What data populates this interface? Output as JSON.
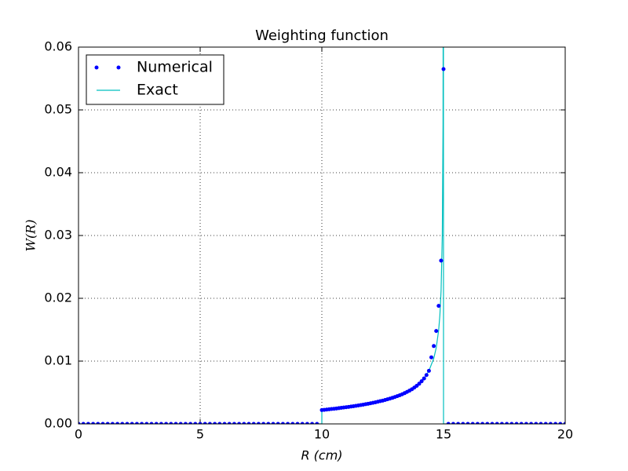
{
  "chart_data": {
    "type": "line",
    "title": "Weighting function",
    "x_label": "R (cm)",
    "y_label": "W(R)",
    "xlim": [
      0,
      20
    ],
    "xticks": [
      0,
      5,
      10,
      15,
      20
    ],
    "ylim": [
      0,
      0.06
    ],
    "yticks": [
      {
        "value": 0,
        "label": "0.00"
      },
      {
        "value": 0.01,
        "label": "0.01"
      },
      {
        "value": 0.02,
        "label": "0.02"
      },
      {
        "value": 0.03,
        "label": "0.03"
      },
      {
        "value": 0.04,
        "label": "0.04"
      },
      {
        "value": 0.05,
        "label": "0.05"
      },
      {
        "value": 0.06,
        "label": "0.06"
      }
    ],
    "grid": true,
    "legend": "upper left",
    "series": [
      {
        "name": "Numerical",
        "color": "#0000ff",
        "marker": "dot",
        "x": [
          0,
          0.2,
          0.4,
          0.6,
          0.8,
          1,
          1.2,
          1.4,
          1.6,
          1.8,
          2,
          2.2,
          2.4,
          2.6,
          2.8,
          3,
          3.2,
          3.4,
          3.6,
          3.8,
          4,
          4.2,
          4.4,
          4.6,
          4.8,
          5,
          5.2,
          5.4,
          5.6,
          5.8,
          6,
          6.2,
          6.4,
          6.6,
          6.8,
          7,
          7.2,
          7.4,
          7.6,
          7.8,
          8,
          8.2,
          8.4,
          8.6,
          8.8,
          9,
          9.2,
          9.4,
          9.6,
          9.8,
          10,
          10.1,
          10.2,
          10.3,
          10.4,
          10.5,
          10.6,
          10.7,
          10.8,
          10.9,
          11,
          11.1,
          11.2,
          11.3,
          11.4,
          11.5,
          11.6,
          11.7,
          11.8,
          11.9,
          12,
          12.1,
          12.2,
          12.3,
          12.4,
          12.5,
          12.6,
          12.7,
          12.8,
          12.9,
          13,
          13.1,
          13.2,
          13.3,
          13.4,
          13.5,
          13.6,
          13.7,
          13.8,
          13.9,
          14,
          14.1,
          14.2,
          14.3,
          14.4,
          14.5,
          14.6,
          14.7,
          14.8,
          14.9,
          15,
          15.2,
          15.4,
          15.6,
          15.8,
          16,
          16.2,
          16.4,
          16.6,
          16.8,
          17,
          17.2,
          17.4,
          17.6,
          17.8,
          18,
          18.2,
          18.4,
          18.6,
          18.8,
          19,
          19.2,
          19.4,
          19.6,
          19.8,
          20
        ],
        "values": [
          0,
          0,
          0,
          0,
          0,
          0,
          0,
          0,
          0,
          0,
          0,
          0,
          0,
          0,
          0,
          0,
          0,
          0,
          0,
          0,
          0,
          0,
          0,
          0,
          0,
          0,
          0,
          0,
          0,
          0,
          0,
          0,
          0,
          0,
          0,
          0,
          0,
          0,
          0,
          0,
          0,
          0,
          0,
          0,
          0,
          0,
          0,
          0,
          0,
          0,
          0.0022,
          0.00224,
          0.00228,
          0.00233,
          0.00237,
          0.00241,
          0.00246,
          0.00251,
          0.00256,
          0.00261,
          0.00266,
          0.00271,
          0.00277,
          0.00282,
          0.00288,
          0.00294,
          0.003,
          0.00307,
          0.00314,
          0.00321,
          0.00328,
          0.00336,
          0.00344,
          0.00353,
          0.00362,
          0.00371,
          0.00381,
          0.00392,
          0.00403,
          0.00415,
          0.00428,
          0.00442,
          0.00456,
          0.00472,
          0.0049,
          0.00509,
          0.00529,
          0.00552,
          0.00578,
          0.00607,
          0.0064,
          0.00679,
          0.00724,
          0.00778,
          0.00845,
          0.0106,
          0.0124,
          0.0148,
          0.0188,
          0.026,
          0.0565,
          0,
          0,
          0,
          0,
          0,
          0,
          0,
          0,
          0,
          0,
          0,
          0,
          0,
          0,
          0,
          0,
          0,
          0,
          0,
          0,
          0,
          0,
          0,
          0,
          0
        ]
      },
      {
        "name": "Exact",
        "color": "#00bfbf",
        "marker": "line",
        "x": [
          0,
          10,
          10,
          10.5,
          11,
          11.5,
          12,
          12.5,
          13,
          13.5,
          14,
          14.2,
          14.4,
          14.6,
          14.7,
          14.8,
          14.85,
          14.9,
          14.95,
          14.98,
          14.995,
          15,
          20
        ],
        "values": [
          0,
          0,
          0.0022,
          0.00241,
          0.00266,
          0.00294,
          0.00328,
          0.00371,
          0.00428,
          0.00509,
          0.0064,
          0.00724,
          0.00845,
          0.01045,
          0.01213,
          0.01493,
          0.01729,
          0.02123,
          0.0301,
          0.0477,
          0.0954,
          0,
          0
        ]
      }
    ]
  }
}
